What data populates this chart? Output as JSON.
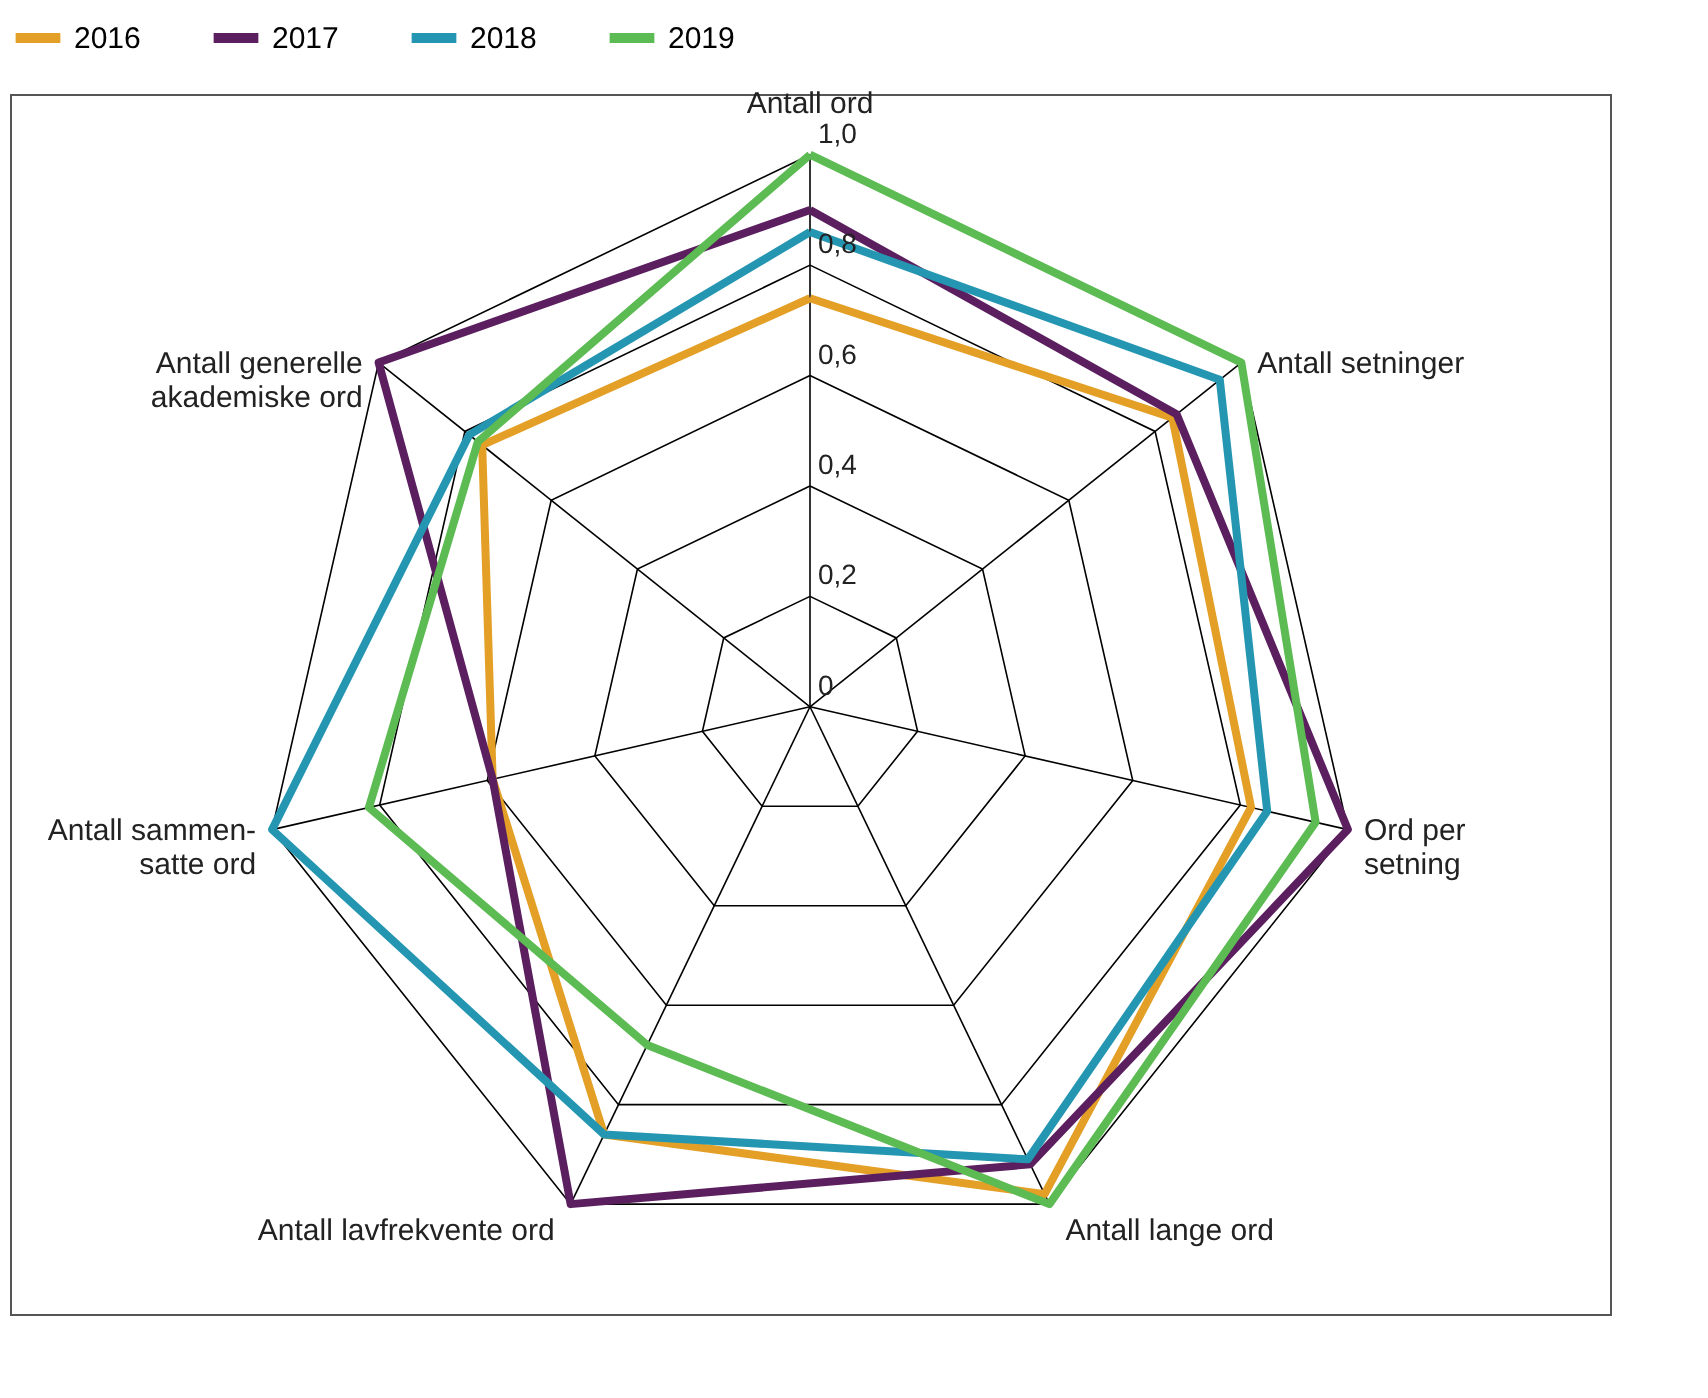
{
  "chart_data": {
    "type": "radar",
    "categories": [
      "Antall ord",
      "Antall setninger",
      "Ord per\nsetning",
      "Antall lange ord",
      "Antall lavfrekvente ord",
      "Antall sammen-\nsatte ord",
      "Antall generelle\nakademiske ord"
    ],
    "series": [
      {
        "name": "2016",
        "color": "#e39f26",
        "values": [
          0.74,
          0.84,
          0.82,
          0.98,
          0.86,
          0.59,
          0.76
        ]
      },
      {
        "name": "2017",
        "color": "#5b1f5f",
        "values": [
          0.9,
          0.85,
          1.0,
          0.92,
          1.0,
          0.59,
          1.0
        ]
      },
      {
        "name": "2018",
        "color": "#2596b1",
        "values": [
          0.86,
          0.95,
          0.85,
          0.91,
          0.86,
          1.0,
          0.79
        ]
      },
      {
        "name": "2019",
        "color": "#5cbb52",
        "values": [
          1.0,
          1.0,
          0.94,
          1.0,
          0.68,
          0.82,
          0.77
        ]
      }
    ],
    "ylim": [
      0,
      1.0
    ],
    "yticks": [
      0,
      {
        "value": 0.2,
        "label": "0,2"
      },
      {
        "value": 0.4,
        "label": "0,4"
      },
      {
        "value": 0.6,
        "label": "0,6"
      },
      {
        "value": 0.8,
        "label": "0,8"
      },
      {
        "value": 1.0,
        "label": "1,0"
      }
    ],
    "grid": true,
    "legend": "top"
  }
}
